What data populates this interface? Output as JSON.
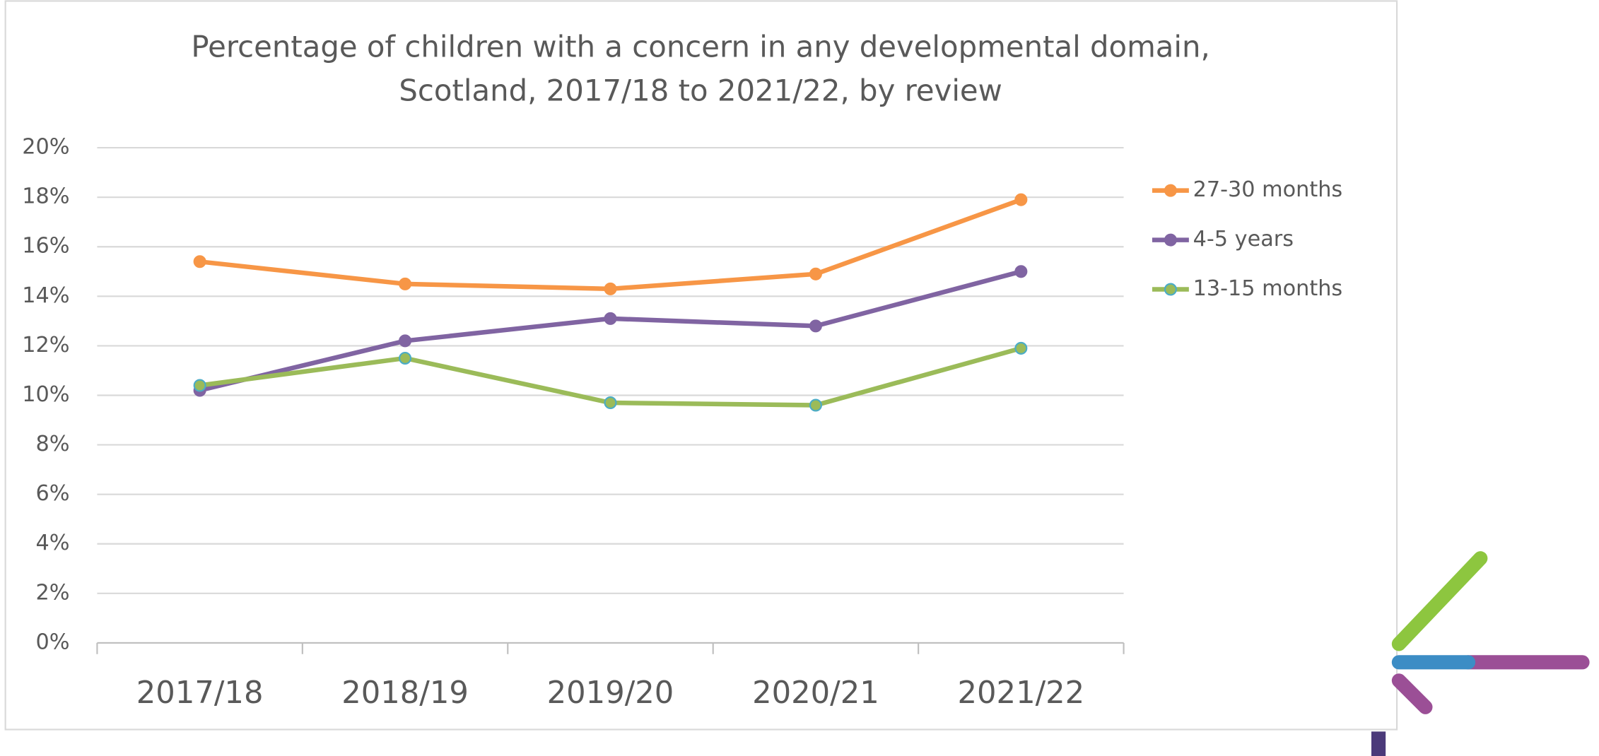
{
  "chart_data": {
    "type": "line",
    "title": [
      "Percentage of children with a concern in any developmental domain,",
      "Scotland, 2017/18 to 2021/22, by review"
    ],
    "categories": [
      "2017/18",
      "2018/19",
      "2019/20",
      "2020/21",
      "2021/22"
    ],
    "series": [
      {
        "name": "27-30 months",
        "color": "#f79646",
        "values": [
          15.4,
          14.5,
          14.3,
          14.9,
          17.9
        ]
      },
      {
        "name": "4-5 years",
        "color": "#8064a2",
        "values": [
          10.2,
          12.2,
          13.1,
          12.8,
          15.0
        ]
      },
      {
        "name": "13-15 months",
        "color": "#9bbb59",
        "values": [
          10.4,
          11.5,
          9.7,
          9.6,
          11.9
        ]
      }
    ],
    "ylim": [
      0,
      20
    ],
    "yticks": [
      {
        "value": 0,
        "label": "0%"
      },
      {
        "value": 2,
        "label": "2%"
      },
      {
        "value": 4,
        "label": "4%"
      },
      {
        "value": 6,
        "label": "6%"
      },
      {
        "value": 8,
        "label": "8%"
      },
      {
        "value": 10,
        "label": "10%"
      },
      {
        "value": 12,
        "label": "12%"
      },
      {
        "value": 14,
        "label": "14%"
      },
      {
        "value": 16,
        "label": "16%"
      },
      {
        "value": 18,
        "label": "18%"
      },
      {
        "value": 20,
        "label": "20%"
      }
    ],
    "grid": true,
    "legend": "right"
  }
}
